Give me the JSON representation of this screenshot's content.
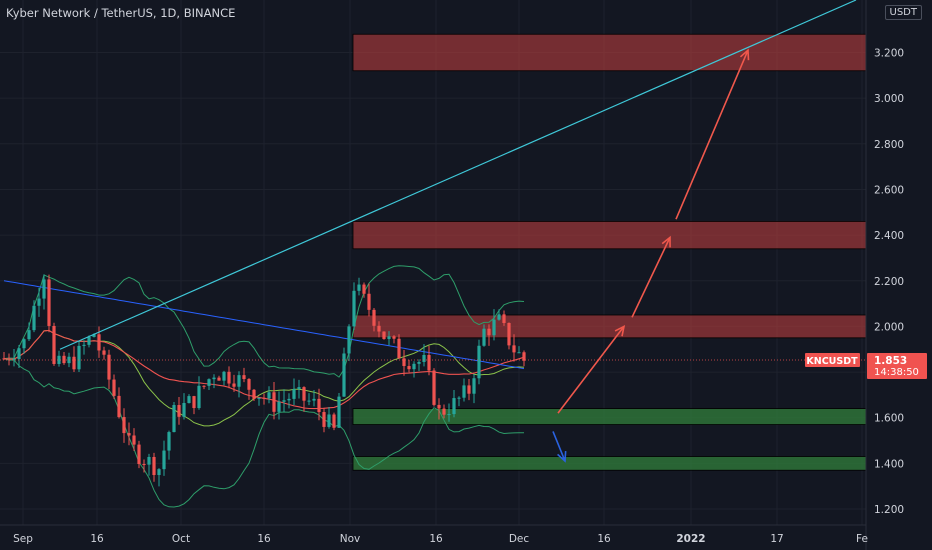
{
  "header": {
    "title": "Kyber Network / TetherUS, 1D, BINANCE",
    "currency": "USDT"
  },
  "price_tag": {
    "symbol": "KNCUSDT",
    "price": "1.853",
    "countdown": "14:38:50",
    "color": "#f05350"
  },
  "chart_data": {
    "type": "candlestick",
    "x_ticks": [
      "Sep",
      "16",
      "Oct",
      "16",
      "Nov",
      "16",
      "Dec",
      "16",
      "2022",
      "17",
      "Fe"
    ],
    "y_ticks": [
      "3.200",
      "3.000",
      "2.800",
      "2.600",
      "2.400",
      "2.200",
      "2.000",
      "1.800",
      "1.600",
      "1.400",
      "1.200"
    ],
    "ylim": [
      1.13,
      3.43
    ],
    "last_price": 1.853,
    "supply_zones": [
      {
        "low": 3.12,
        "high": 3.28,
        "color": "#b23b3b"
      },
      {
        "low": 2.34,
        "high": 2.46,
        "color": "#b23b3b"
      },
      {
        "low": 1.95,
        "high": 2.05,
        "color": "#b23b3b"
      }
    ],
    "demand_zones": [
      {
        "low": 1.57,
        "high": 1.64,
        "color": "#2f7a3a"
      },
      {
        "low": 1.37,
        "high": 1.43,
        "color": "#2f7a3a"
      }
    ],
    "colors": {
      "up": "#26a69a",
      "down": "#ef5350",
      "trendline": "#3fc8d8",
      "arrow_up": "#f0584c",
      "arrow_down": "#2a62e0"
    }
  }
}
